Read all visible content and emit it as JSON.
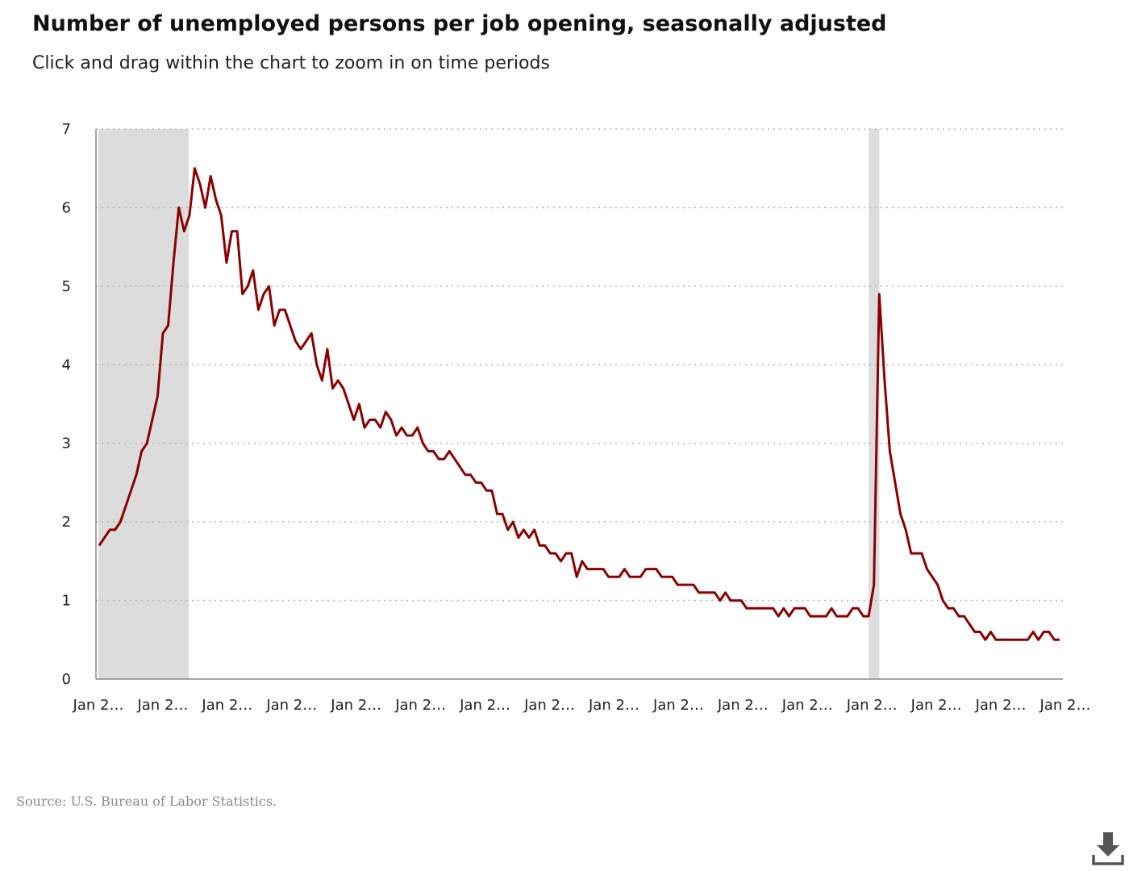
{
  "title": "Number of unemployed persons per job opening, seasonally adjusted",
  "subtitle": "Click and drag within the chart to zoom in on time periods",
  "source": "Source: U.S. Bureau of Labor Statistics.",
  "download_icon": "download-icon",
  "chart_data": {
    "type": "line",
    "title": "Number of unemployed persons per job opening, seasonally adjusted",
    "xlabel": "",
    "ylabel": "",
    "ylim": [
      0,
      7
    ],
    "yticks": [
      0,
      1,
      2,
      3,
      4,
      5,
      6,
      7
    ],
    "grid": "horizontal dotted",
    "x_range": [
      "2008-01",
      "2023-03"
    ],
    "xtick_labels": [
      "Jan 2…",
      "Jan 2…",
      "Jan 2…",
      "Jan 2…",
      "Jan 2…",
      "Jan 2…",
      "Jan 2…",
      "Jan 2…",
      "Jan 2…",
      "Jan 2…",
      "Jan 2…",
      "Jan 2…",
      "Jan 2…",
      "Jan 2…",
      "Jan 2…",
      "Jan 2…"
    ],
    "recessions": [
      {
        "start": "2008-01",
        "end": "2009-06"
      },
      {
        "start": "2020-02",
        "end": "2020-04"
      }
    ],
    "colors": {
      "line": "#8b0000",
      "recession": "#dcdcdc",
      "grid": "#b5b5b5",
      "axis": "#888888"
    },
    "series": [
      {
        "values": [
          1.7,
          1.8,
          1.9,
          1.9,
          2.0,
          2.2,
          2.4,
          2.6,
          2.9,
          3.0,
          3.3,
          3.6,
          4.4,
          4.5,
          5.3,
          6.0,
          5.7,
          5.9,
          6.5,
          6.3,
          6.0,
          6.4,
          6.1,
          5.9,
          5.3,
          5.7,
          5.7,
          4.9,
          5.0,
          5.2,
          4.7,
          4.9,
          5.0,
          4.5,
          4.7,
          4.7,
          4.5,
          4.3,
          4.2,
          4.3,
          4.4,
          4.0,
          3.8,
          4.2,
          3.7,
          3.8,
          3.7,
          3.5,
          3.3,
          3.5,
          3.2,
          3.3,
          3.3,
          3.2,
          3.4,
          3.3,
          3.1,
          3.2,
          3.1,
          3.1,
          3.2,
          3.0,
          2.9,
          2.9,
          2.8,
          2.8,
          2.9,
          2.8,
          2.7,
          2.6,
          2.6,
          2.5,
          2.5,
          2.4,
          2.4,
          2.1,
          2.1,
          1.9,
          2.0,
          1.8,
          1.9,
          1.8,
          1.9,
          1.7,
          1.7,
          1.6,
          1.6,
          1.5,
          1.6,
          1.6,
          1.3,
          1.5,
          1.4,
          1.4,
          1.4,
          1.4,
          1.3,
          1.3,
          1.3,
          1.4,
          1.3,
          1.3,
          1.3,
          1.4,
          1.4,
          1.4,
          1.3,
          1.3,
          1.3,
          1.2,
          1.2,
          1.2,
          1.2,
          1.1,
          1.1,
          1.1,
          1.1,
          1.0,
          1.1,
          1.0,
          1.0,
          1.0,
          0.9,
          0.9,
          0.9,
          0.9,
          0.9,
          0.9,
          0.8,
          0.9,
          0.8,
          0.9,
          0.9,
          0.9,
          0.8,
          0.8,
          0.8,
          0.8,
          0.9,
          0.8,
          0.8,
          0.8,
          0.9,
          0.9,
          0.8,
          0.8,
          1.2,
          4.9,
          3.8,
          2.9,
          2.5,
          2.1,
          1.9,
          1.6,
          1.6,
          1.6,
          1.4,
          1.3,
          1.2,
          1.0,
          0.9,
          0.9,
          0.8,
          0.8,
          0.7,
          0.6,
          0.6,
          0.5,
          0.6,
          0.5,
          0.5,
          0.5,
          0.5,
          0.5,
          0.5,
          0.5,
          0.6,
          0.5,
          0.6,
          0.6,
          0.5,
          0.5
        ]
      }
    ]
  }
}
